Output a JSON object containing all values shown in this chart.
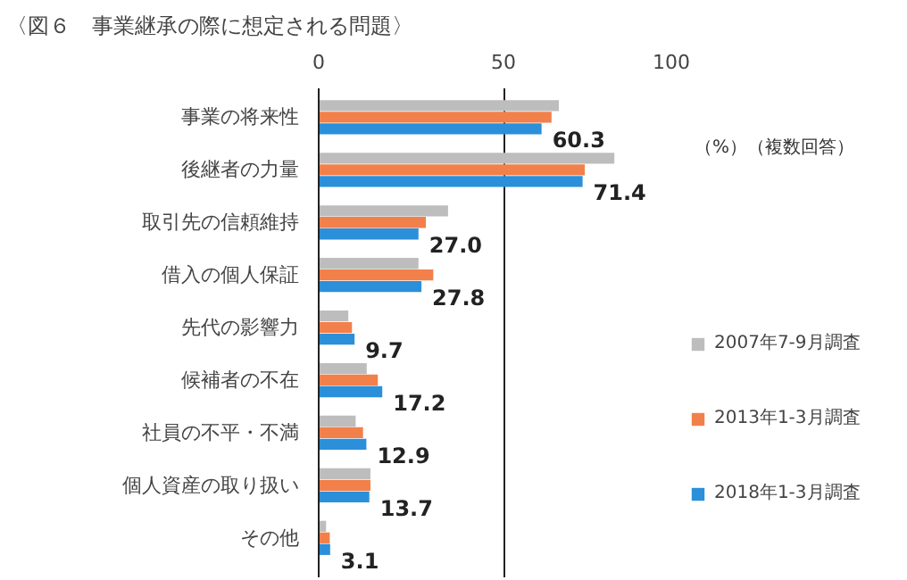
{
  "chart_data": {
    "type": "bar",
    "orientation": "horizontal",
    "title": "〈図６　事業継承の際に想定される問題〉",
    "categories": [
      "事業の将来性",
      "後継者の力量",
      "取引先の信頼維持",
      "借入の個人保証",
      "先代の影響力",
      "候補者の不在",
      "社員の不平・不満",
      "個人資産の取り扱い",
      "その他"
    ],
    "series": [
      {
        "name": "2007年7-9月調査",
        "color": "#bdbdbd",
        "values": [
          65,
          80,
          35,
          27,
          8,
          13,
          10,
          14,
          2
        ]
      },
      {
        "name": "2013年1-3月調査",
        "color": "#f2804a",
        "values": [
          63,
          72,
          29,
          31,
          9,
          16,
          12,
          14,
          3
        ]
      },
      {
        "name": "2018年1-3月調査",
        "color": "#2b8fd9",
        "values": [
          60.3,
          71.4,
          27.0,
          27.8,
          9.7,
          17.2,
          12.9,
          13.7,
          3.1
        ],
        "value_labels": [
          "60.3",
          "71.4",
          "27.0",
          "27.8",
          "9.7",
          "17.2",
          "12.9",
          "13.7",
          "3.1"
        ]
      }
    ],
    "xlim": [
      0,
      100
    ],
    "xticks": [
      0,
      50,
      100
    ],
    "grid": "x",
    "legend": "right",
    "annotations": [
      "（%）（複数回答）"
    ]
  }
}
